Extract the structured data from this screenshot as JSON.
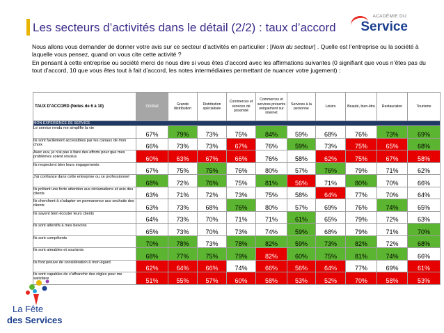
{
  "title": "Les secteurs d’activités dans le détail (2/2) : taux d’accord",
  "logo": {
    "small": "ACADÉMIE DU",
    "big": "Service"
  },
  "intro": {
    "p1_pre": "Nous allons vous demander de donner votre avis sur ce secteur d’activités en particulier : [",
    "p1_italic": "Nom du secteur",
    "p1_post": "] . Quelle est l’entreprise ou la société à laquelle vous pensez, quand on vous cite cette activité ?",
    "p2": "En pensant à cette entreprise ou société merci de nous dire si vous êtes d’accord avec les affirmations suivantes (0 signifiant que vous n’êtes pas du tout d’accord, 10 que vous êtes tout à fait d’accord, les notes intermédiaires permettant de nuancer votre jugement) :"
  },
  "table": {
    "corner": "TAUX D'ACCORD (Notes de 6 à 10)",
    "columns": [
      "Global",
      "Grande distribution",
      "Distribution spécialisée",
      "Commerces et services de proximité",
      "Commerces et services présents uniquement sur internet",
      "Services à la personne",
      "Loisirs",
      "Beauté, bien-être",
      "Restauration",
      "Tourisme"
    ],
    "section": "MON EXPERIENCE DE SERVICE",
    "rows": [
      {
        "label": "Le service rendu me simplifie la vie",
        "values": [
          "67%",
          "79%",
          "73%",
          "75%",
          "84%",
          "59%",
          "68%",
          "76%",
          "73%",
          "69%"
        ],
        "colors": [
          "w",
          "g",
          "w",
          "w",
          "g",
          "w",
          "w",
          "w",
          "g",
          "g"
        ]
      },
      {
        "label": "Ils sont facilement accessibles par les canaux de mon choix",
        "values": [
          "66%",
          "73%",
          "73%",
          "67%",
          "76%",
          "59%",
          "73%",
          "75%",
          "65%",
          "68%"
        ],
        "colors": [
          "w",
          "w",
          "w",
          "r",
          "w",
          "g",
          "w",
          "r",
          "r",
          "g"
        ]
      },
      {
        "label": "Avec eux, je n'ai pas à faire des efforts pour que mes problèmes soient résolus",
        "values": [
          "60%",
          "63%",
          "67%",
          "66%",
          "76%",
          "58%",
          "62%",
          "75%",
          "67%",
          "58%"
        ],
        "colors": [
          "r",
          "r",
          "r",
          "r",
          "w",
          "w",
          "r",
          "r",
          "r",
          "r"
        ]
      },
      {
        "label": "Ils respectent bien leurs engagements",
        "values": [
          "67%",
          "75%",
          "75%",
          "76%",
          "80%",
          "57%",
          "76%",
          "79%",
          "71%",
          "62%"
        ],
        "colors": [
          "w",
          "w",
          "g",
          "w",
          "w",
          "w",
          "g",
          "w",
          "w",
          "w"
        ]
      },
      {
        "label": "J'ai confiance dans cette entreprise ou ce professionnel",
        "values": [
          "68%",
          "72%",
          "76%",
          "75%",
          "81%",
          "56%",
          "71%",
          "80%",
          "70%",
          "66%"
        ],
        "colors": [
          "g",
          "w",
          "g",
          "w",
          "g",
          "r",
          "w",
          "g",
          "w",
          "w"
        ]
      },
      {
        "label": "Ils prêtent une forte attention aux réclamations et avis des clients",
        "values": [
          "63%",
          "71%",
          "72%",
          "73%",
          "75%",
          "58%",
          "64%",
          "77%",
          "70%",
          "64%"
        ],
        "colors": [
          "w",
          "w",
          "w",
          "w",
          "w",
          "w",
          "r",
          "w",
          "w",
          "w"
        ]
      },
      {
        "label": "Ils cherchent à s'adapter en permanence aux souhaits des clients",
        "values": [
          "63%",
          "73%",
          "68%",
          "76%",
          "80%",
          "57%",
          "69%",
          "76%",
          "74%",
          "65%"
        ],
        "colors": [
          "w",
          "w",
          "w",
          "g",
          "w",
          "w",
          "w",
          "w",
          "g",
          "w"
        ]
      },
      {
        "label": "Ils savent bien écouter leurs clients",
        "values": [
          "64%",
          "73%",
          "70%",
          "71%",
          "71%",
          "61%",
          "65%",
          "79%",
          "72%",
          "63%"
        ],
        "colors": [
          "w",
          "w",
          "w",
          "w",
          "w",
          "g",
          "w",
          "w",
          "w",
          "w"
        ]
      },
      {
        "label": "Ils sont attentifs à mes besoins",
        "values": [
          "65%",
          "73%",
          "70%",
          "73%",
          "74%",
          "59%",
          "68%",
          "79%",
          "71%",
          "70%"
        ],
        "colors": [
          "w",
          "w",
          "w",
          "w",
          "w",
          "g",
          "w",
          "w",
          "w",
          "g"
        ]
      },
      {
        "label": "Ils sont compétents",
        "values": [
          "70%",
          "78%",
          "73%",
          "78%",
          "82%",
          "59%",
          "73%",
          "82%",
          "72%",
          "68%"
        ],
        "colors": [
          "g",
          "g",
          "w",
          "g",
          "g",
          "g",
          "g",
          "g",
          "w",
          "g"
        ]
      },
      {
        "label": "Ils sont aimables et souriants",
        "values": [
          "68%",
          "77%",
          "75%",
          "79%",
          "82%",
          "60%",
          "75%",
          "81%",
          "74%",
          "66%"
        ],
        "colors": [
          "g",
          "g",
          "g",
          "g",
          "r",
          "g",
          "g",
          "g",
          "g",
          "w"
        ]
      },
      {
        "label": "Ils font preuve de considération à mon égard",
        "values": [
          "62%",
          "64%",
          "66%",
          "74%",
          "66%",
          "56%",
          "64%",
          "77%",
          "69%",
          "61%"
        ],
        "colors": [
          "r",
          "r",
          "r",
          "w",
          "r",
          "r",
          "r",
          "w",
          "w",
          "r"
        ]
      },
      {
        "label": "Ils sont capables de s'affranchir des règles pour me satisfaire",
        "values": [
          "51%",
          "55%",
          "57%",
          "60%",
          "58%",
          "53%",
          "52%",
          "70%",
          "58%",
          "53%"
        ],
        "colors": [
          "r",
          "r",
          "r",
          "r",
          "r",
          "r",
          "r",
          "r",
          "r",
          "r"
        ]
      }
    ]
  },
  "footer_logo": {
    "line1": "La Fête",
    "line2": "des Services"
  }
}
